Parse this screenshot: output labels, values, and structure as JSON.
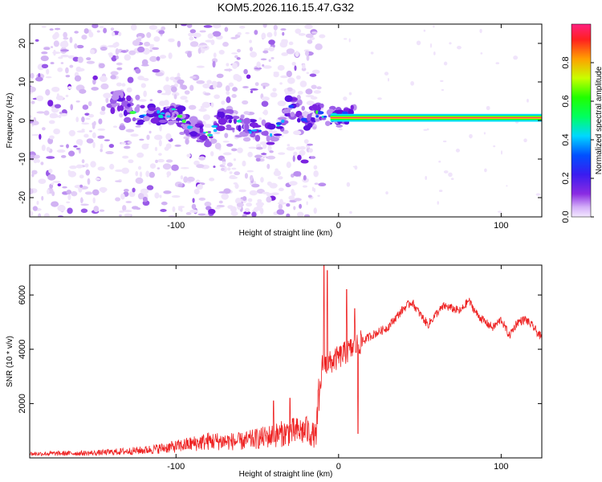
{
  "title": "KOM5.2026.116.15.47.G32",
  "colors": {
    "series_line": "#ee2222",
    "tf_low": "#e6d4f7",
    "tf_mid": "#7a22e0",
    "line_band": [
      "#00e0ff",
      "#00ff00",
      "#ffff00",
      "#ff2060"
    ]
  },
  "chart_data": [
    {
      "type": "heatmap",
      "name": "spectrogram",
      "xlabel": "Height of straight line (km)",
      "ylabel": "Frequency (Hz)",
      "xlim": [
        -190,
        125
      ],
      "ylim": [
        -25,
        25
      ],
      "x_ticks": [
        -100,
        0,
        100
      ],
      "x_tick_labels": [
        "-100",
        "0",
        "100"
      ],
      "y_ticks": [
        -20,
        -10,
        0,
        10,
        20
      ],
      "y_tick_labels": [
        "-20",
        "-10",
        "0",
        "10",
        "20"
      ],
      "grid": false,
      "colorbar": {
        "label": "Normalized spectral amplitude",
        "range": [
          0,
          1
        ],
        "ticks": [
          0.0,
          0.2,
          0.4,
          0.6,
          0.8
        ],
        "tick_labels": [
          "0.0",
          "0.2",
          "0.4",
          "0.6",
          "0.8"
        ]
      },
      "features": {
        "scatter_zone_x": [
          -190,
          -20
        ],
        "coherent_line_start_x": -5,
        "coherent_line_freq_hz": 0.7,
        "coherent_line_halfwidth_hz": 0.8,
        "ridge_points": [
          {
            "x": -135,
            "f": 5
          },
          {
            "x": -120,
            "f": 1
          },
          {
            "x": -100,
            "f": 2
          },
          {
            "x": -90,
            "f": -2
          },
          {
            "x": -80,
            "f": -4
          },
          {
            "x": -70,
            "f": 1
          },
          {
            "x": -55,
            "f": -2
          },
          {
            "x": -40,
            "f": -4
          },
          {
            "x": -30,
            "f": 4
          },
          {
            "x": -20,
            "f": 0
          },
          {
            "x": -10,
            "f": 2
          },
          {
            "x": 0,
            "f": 1
          },
          {
            "x": 10,
            "f": 1
          }
        ]
      }
    },
    {
      "type": "line",
      "name": "snr",
      "xlabel": "Height of straight line (km)",
      "ylabel": "SNR (10 * v/v)",
      "xlim": [
        -190,
        125
      ],
      "ylim": [
        0,
        7100
      ],
      "x_ticks": [
        -100,
        0,
        100
      ],
      "x_tick_labels": [
        "-100",
        "0",
        "100"
      ],
      "y_ticks": [
        2000,
        4000,
        6000
      ],
      "y_tick_labels": [
        "2000",
        "4000",
        "6000"
      ],
      "grid": false,
      "envelope": [
        {
          "x": -190,
          "y": 150
        },
        {
          "x": -150,
          "y": 180
        },
        {
          "x": -120,
          "y": 280
        },
        {
          "x": -100,
          "y": 420
        },
        {
          "x": -80,
          "y": 620
        },
        {
          "x": -60,
          "y": 600
        },
        {
          "x": -40,
          "y": 820
        },
        {
          "x": -30,
          "y": 950
        },
        {
          "x": -20,
          "y": 1000
        },
        {
          "x": -14,
          "y": 800
        },
        {
          "x": -10,
          "y": 3400
        },
        {
          "x": -5,
          "y": 3500
        },
        {
          "x": 0,
          "y": 3700
        },
        {
          "x": 10,
          "y": 4100
        },
        {
          "x": 20,
          "y": 4500
        },
        {
          "x": 30,
          "y": 4800
        },
        {
          "x": 40,
          "y": 5500
        },
        {
          "x": 45,
          "y": 5750
        },
        {
          "x": 50,
          "y": 5300
        },
        {
          "x": 55,
          "y": 4900
        },
        {
          "x": 60,
          "y": 5300
        },
        {
          "x": 65,
          "y": 5600
        },
        {
          "x": 75,
          "y": 5400
        },
        {
          "x": 80,
          "y": 5800
        },
        {
          "x": 85,
          "y": 5300
        },
        {
          "x": 90,
          "y": 5000
        },
        {
          "x": 95,
          "y": 4800
        },
        {
          "x": 100,
          "y": 5100
        },
        {
          "x": 105,
          "y": 4500
        },
        {
          "x": 110,
          "y": 5000
        },
        {
          "x": 115,
          "y": 5100
        },
        {
          "x": 120,
          "y": 4800
        },
        {
          "x": 125,
          "y": 4400
        }
      ],
      "spikes": [
        {
          "x": -40,
          "y": 2100
        },
        {
          "x": -30,
          "y": 2200
        },
        {
          "x": -20,
          "y": 1500
        },
        {
          "x": -9,
          "y": 7100
        },
        {
          "x": -7,
          "y": 6900
        },
        {
          "x": 5,
          "y": 6200
        },
        {
          "x": 10,
          "y": 5500
        },
        {
          "x": 12,
          "y": 900
        }
      ]
    }
  ]
}
